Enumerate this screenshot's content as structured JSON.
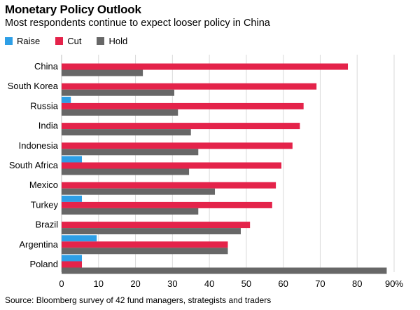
{
  "chart_data": {
    "type": "bar",
    "orientation": "horizontal",
    "title": "Monetary Policy Outlook",
    "subtitle": "Most respondents continue to expect looser policy in China",
    "categories": [
      "China",
      "South Korea",
      "Russia",
      "India",
      "Indonesia",
      "South Africa",
      "Mexico",
      "Turkey",
      "Brazil",
      "Argentina",
      "Poland"
    ],
    "series": [
      {
        "name": "Raise",
        "color": "#2e9fe6",
        "values": [
          0,
          0,
          2.5,
          0,
          0,
          5.5,
          0,
          5.5,
          0,
          9.5,
          5.5
        ]
      },
      {
        "name": "Cut",
        "color": "#e4234a",
        "values": [
          77.5,
          69,
          65.5,
          64.5,
          62.5,
          59.5,
          58,
          57,
          51,
          45,
          5.5
        ]
      },
      {
        "name": "Hold",
        "color": "#676767",
        "values": [
          22,
          30.5,
          31.5,
          35,
          37,
          34.5,
          41.5,
          37,
          48.5,
          45,
          88
        ]
      }
    ],
    "xlim": [
      0,
      90
    ],
    "xticks": [
      "0",
      "10",
      "20",
      "30",
      "40",
      "50",
      "60",
      "70",
      "80",
      "90%"
    ],
    "xlabel": "",
    "ylabel": "",
    "grid": true,
    "legend": "top-left",
    "source": "Source: Bloomberg survey of 42 fund managers, strategists and traders"
  }
}
